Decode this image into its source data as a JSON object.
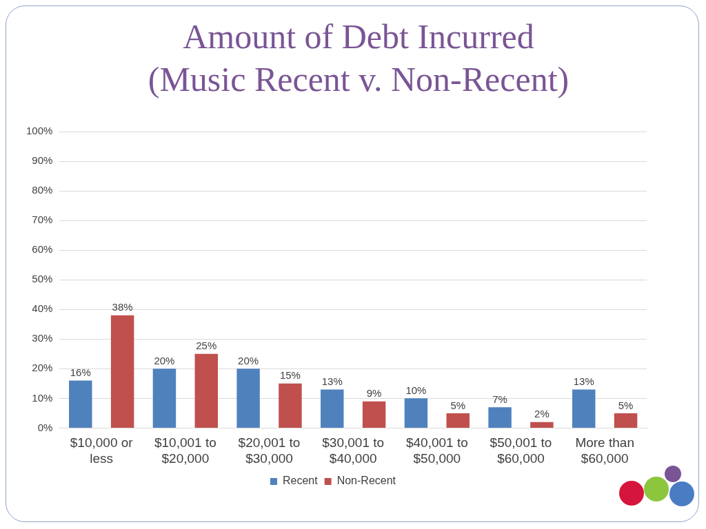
{
  "chart_data": {
    "type": "bar",
    "title": "Amount of Debt Incurred",
    "subtitle": "(Music Recent v. Non-Recent)",
    "categories": [
      "$10,000 or less",
      "$10,001 to $20,000",
      "$20,001 to $30,000",
      "$30,001 to $40,000",
      "$40,001 to $50,000",
      "$50,001 to $60,000",
      "More than $60,000"
    ],
    "series": [
      {
        "name": "Recent",
        "color": "#4f81bd",
        "values": [
          16,
          20,
          20,
          13,
          10,
          7,
          13
        ],
        "value_labels": [
          "16%",
          "20%",
          "20%",
          "13%",
          "10%",
          "7%",
          "13%"
        ]
      },
      {
        "name": "Non-Recent",
        "color": "#c0504d",
        "values": [
          38,
          25,
          15,
          9,
          5,
          2,
          5
        ],
        "value_labels": [
          "38%",
          "25%",
          "15%",
          "9%",
          "5%",
          "2%",
          "5%"
        ]
      }
    ],
    "ylim": [
      0,
      100
    ],
    "yticks": [
      {
        "value": 0,
        "label": "0%"
      },
      {
        "value": 10,
        "label": "10%"
      },
      {
        "value": 20,
        "label": "20%"
      },
      {
        "value": 30,
        "label": "30%"
      },
      {
        "value": 40,
        "label": "40%"
      },
      {
        "value": 50,
        "label": "50%"
      },
      {
        "value": 60,
        "label": "60%"
      },
      {
        "value": 70,
        "label": "70%"
      },
      {
        "value": 80,
        "label": "80%"
      },
      {
        "value": 90,
        "label": "90%"
      },
      {
        "value": 100,
        "label": "100%"
      }
    ],
    "grid": true,
    "legend": "bottom",
    "data_labels": true
  }
}
